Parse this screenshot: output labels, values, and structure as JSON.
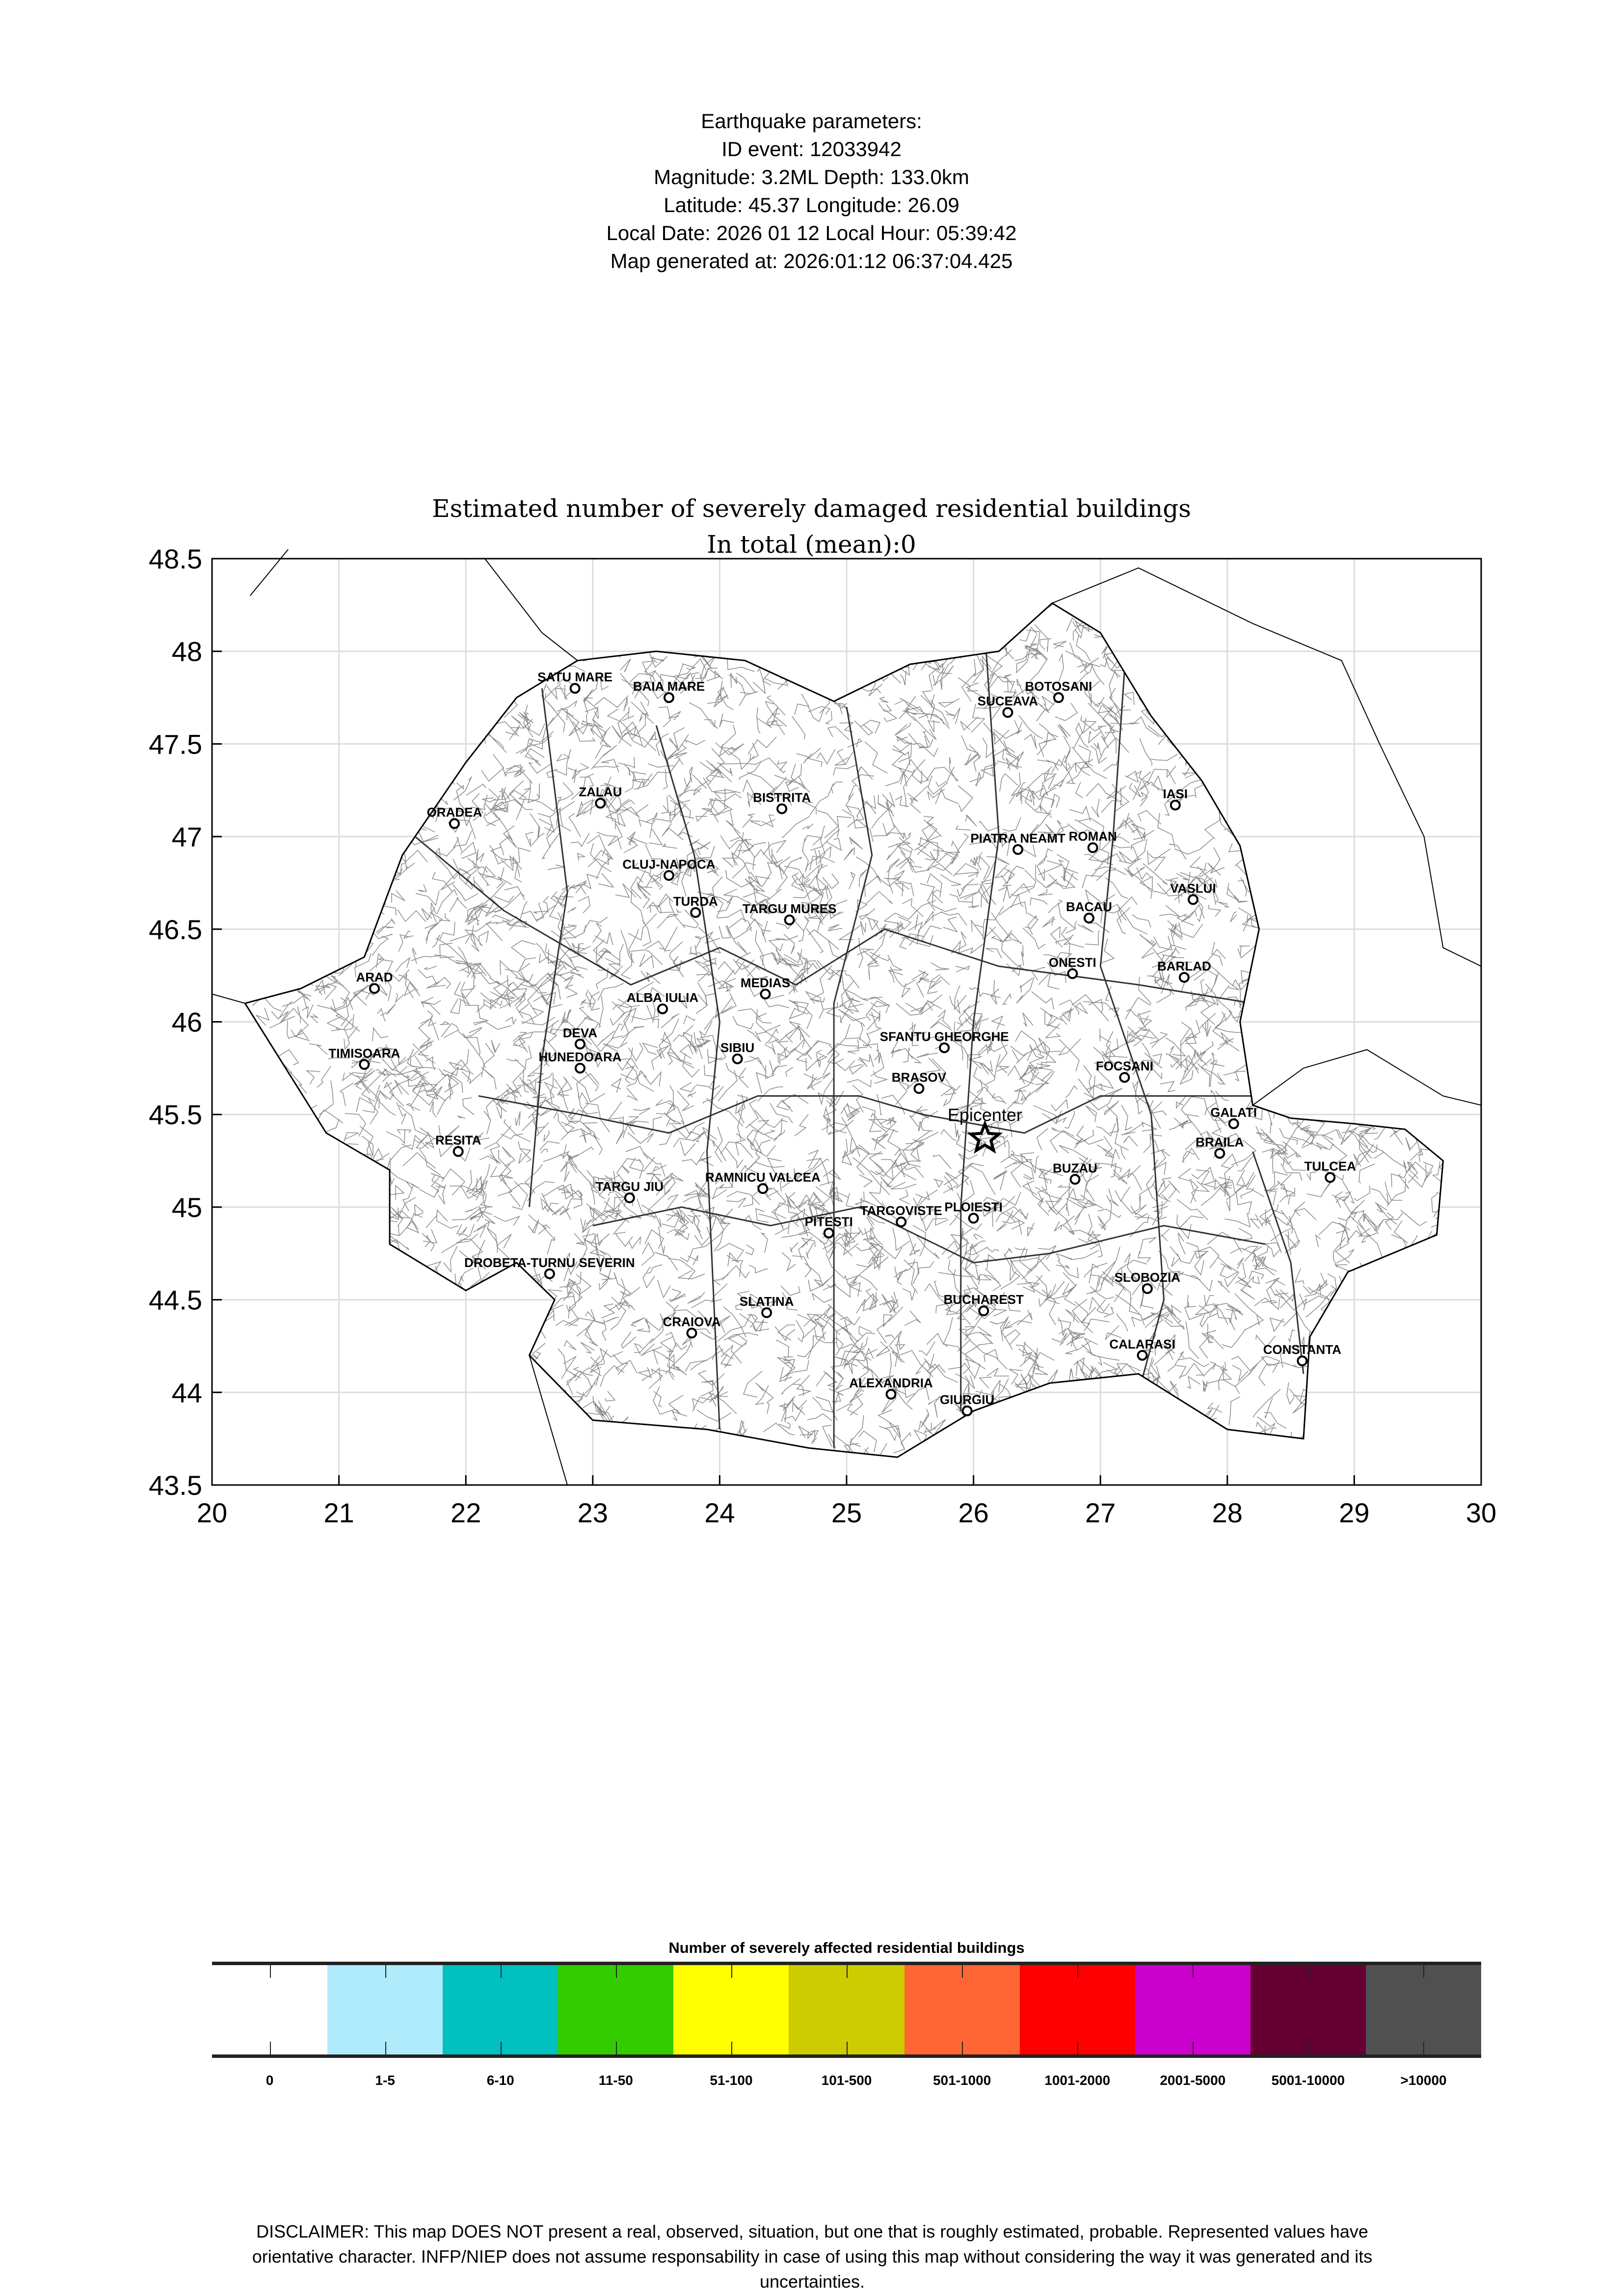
{
  "header": {
    "lines": [
      "Earthquake parameters:",
      "ID event: 12033942",
      "Magnitude: 3.2ML Depth: 133.0km",
      "Latitude: 45.37  Longitude: 26.09",
      "Local Date: 2026 01 12  Local Hour: 05:39:42",
      "Map generated at: 2026:01:12 06:37:04.425"
    ]
  },
  "map": {
    "title": "Estimated number of severely damaged residential buildings",
    "subtitle": "In total (mean):0",
    "xlim": [
      20,
      30
    ],
    "ylim": [
      43.5,
      48.5
    ],
    "xticks": [
      "20",
      "21",
      "22",
      "23",
      "24",
      "25",
      "26",
      "27",
      "28",
      "29",
      "30"
    ],
    "yticks": [
      "43.5",
      "44",
      "44.5",
      "45",
      "45.5",
      "46",
      "46.5",
      "47",
      "47.5",
      "48",
      "48.5"
    ],
    "grid": true,
    "epicenter": {
      "label": "Epicenter",
      "lon": 26.09,
      "lat": 45.37,
      "icon": "star-icon"
    },
    "cities": [
      {
        "name": "SATU MARE",
        "lon": 22.86,
        "lat": 47.8
      },
      {
        "name": "BAIA MARE",
        "lon": 23.6,
        "lat": 47.75
      },
      {
        "name": "BOTOSANI",
        "lon": 26.67,
        "lat": 47.75
      },
      {
        "name": "SUCEAVA",
        "lon": 26.27,
        "lat": 47.67
      },
      {
        "name": "ZALAU",
        "lon": 23.06,
        "lat": 47.18
      },
      {
        "name": "BISTRITA",
        "lon": 24.49,
        "lat": 47.15
      },
      {
        "name": "ORADEA",
        "lon": 21.91,
        "lat": 47.07
      },
      {
        "name": "IASI",
        "lon": 27.59,
        "lat": 47.17
      },
      {
        "name": "PIATRA NEAMT",
        "lon": 26.35,
        "lat": 46.93
      },
      {
        "name": "ROMAN",
        "lon": 26.94,
        "lat": 46.94
      },
      {
        "name": "CLUJ-NAPOCA",
        "lon": 23.6,
        "lat": 46.79
      },
      {
        "name": "VASLUI",
        "lon": 27.73,
        "lat": 46.66
      },
      {
        "name": "TURDA",
        "lon": 23.81,
        "lat": 46.59
      },
      {
        "name": "TARGU MURES",
        "lon": 24.55,
        "lat": 46.55
      },
      {
        "name": "BACAU",
        "lon": 26.91,
        "lat": 46.56
      },
      {
        "name": "ONESTI",
        "lon": 26.78,
        "lat": 46.26
      },
      {
        "name": "BARLAD",
        "lon": 27.66,
        "lat": 46.24
      },
      {
        "name": "ARAD",
        "lon": 21.28,
        "lat": 46.18
      },
      {
        "name": "MEDIAS",
        "lon": 24.36,
        "lat": 46.15
      },
      {
        "name": "ALBA IULIA",
        "lon": 23.55,
        "lat": 46.07
      },
      {
        "name": "DEVA",
        "lon": 22.9,
        "lat": 45.88
      },
      {
        "name": "HUNEDOARA",
        "lon": 22.9,
        "lat": 45.75
      },
      {
        "name": "TIMISOARA",
        "lon": 21.2,
        "lat": 45.77
      },
      {
        "name": "SIBIU",
        "lon": 24.14,
        "lat": 45.8
      },
      {
        "name": "SFANTU GHEORGHE",
        "lon": 25.77,
        "lat": 45.86
      },
      {
        "name": "BRASOV",
        "lon": 25.57,
        "lat": 45.64
      },
      {
        "name": "FOCSANI",
        "lon": 27.19,
        "lat": 45.7
      },
      {
        "name": "GALATI",
        "lon": 28.05,
        "lat": 45.45
      },
      {
        "name": "BRAILA",
        "lon": 27.94,
        "lat": 45.29
      },
      {
        "name": "TULCEA",
        "lon": 28.81,
        "lat": 45.16
      },
      {
        "name": "RESITA",
        "lon": 21.94,
        "lat": 45.3
      },
      {
        "name": "BUZAU",
        "lon": 26.8,
        "lat": 45.15
      },
      {
        "name": "RAMNICU VALCEA",
        "lon": 24.34,
        "lat": 45.1
      },
      {
        "name": "TARGU JIU",
        "lon": 23.29,
        "lat": 45.05
      },
      {
        "name": "TARGOVISTE",
        "lon": 25.43,
        "lat": 44.92
      },
      {
        "name": "PLOIESTI",
        "lon": 26.0,
        "lat": 44.94
      },
      {
        "name": "PITESTI",
        "lon": 24.86,
        "lat": 44.86
      },
      {
        "name": "DROBETA-TURNU SEVERIN",
        "lon": 22.66,
        "lat": 44.64
      },
      {
        "name": "SLOBOZIA",
        "lon": 27.37,
        "lat": 44.56
      },
      {
        "name": "SLATINA",
        "lon": 24.37,
        "lat": 44.43
      },
      {
        "name": "BUCHAREST",
        "lon": 26.08,
        "lat": 44.44
      },
      {
        "name": "CRAIOVA",
        "lon": 23.78,
        "lat": 44.32
      },
      {
        "name": "CALARASI",
        "lon": 27.33,
        "lat": 44.2
      },
      {
        "name": "CONSTANTA",
        "lon": 28.59,
        "lat": 44.17
      },
      {
        "name": "ALEXANDRIA",
        "lon": 25.35,
        "lat": 43.99
      },
      {
        "name": "GIURGIU",
        "lon": 25.95,
        "lat": 43.9
      }
    ]
  },
  "legend": {
    "title": "Number of severely affected residential buildings",
    "classes": [
      {
        "label": "0",
        "color": "#ffffff"
      },
      {
        "label": "1-5",
        "color": "#b0ebfc"
      },
      {
        "label": "6-10",
        "color": "#00c0c0"
      },
      {
        "label": "11-50",
        "color": "#33cc00"
      },
      {
        "label": "51-100",
        "color": "#ffff00"
      },
      {
        "label": "101-500",
        "color": "#cccc00"
      },
      {
        "label": "501-1000",
        "color": "#ff6633"
      },
      {
        "label": "1001-2000",
        "color": "#ff0000"
      },
      {
        "label": "2001-5000",
        "color": "#cc00cc"
      },
      {
        "label": "5001-10000",
        "color": "#660033"
      },
      {
        "label": ">10000",
        "color": "#505050"
      }
    ]
  },
  "disclaimer": "DISCLAIMER: This map DOES NOT present a real, observed, situation, but one that is roughly estimated, probable. Represented values have orientative character. INFP/NIEP does not assume responsability in case of using this map without considering the way it was generated and its uncertainties."
}
